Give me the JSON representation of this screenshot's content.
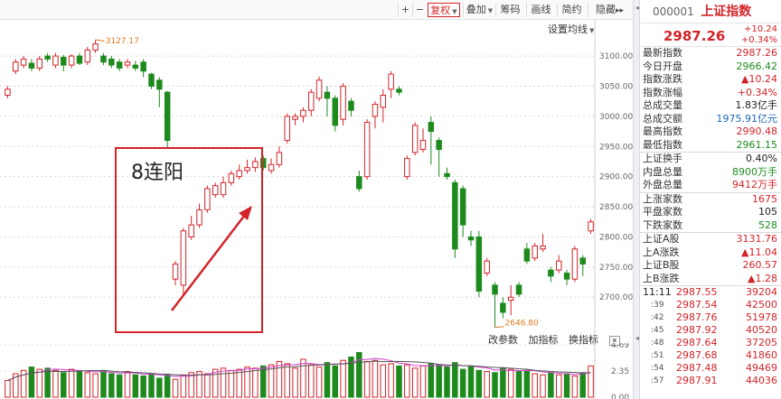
{
  "toolbar": {
    "zoom_in": "+",
    "zoom_out": "−",
    "adjust": "复权",
    "overlay": "叠加",
    "chips": "筹码",
    "draw": "画线",
    "brief": "简约",
    "hide": "隐藏",
    "expand": "▸▸"
  },
  "ma_toggle": "设置均线",
  "annotation": {
    "label": "8连阳",
    "high_marker": "3127.17",
    "low_marker": "2646.80"
  },
  "y_axis": [
    "3100.00",
    "3050.00",
    "3000.00",
    "2950.00",
    "2900.00",
    "2850.00",
    "2800.00",
    "2750.00",
    "2700.00"
  ],
  "vol_axis": [
    "4.69",
    "2.35",
    "0.00"
  ],
  "vol_header": [
    "改参数",
    "加指标",
    "换指标"
  ],
  "vol_close": "✕",
  "colors": {
    "up": "#d2242a",
    "down": "#1e8a1e",
    "box": "#d2242a"
  },
  "chart_data": {
    "type": "candlestick",
    "ylim": [
      2630,
      3160
    ],
    "candles": [
      {
        "o": 3035,
        "c": 3045,
        "h": 3050,
        "l": 3030
      },
      {
        "o": 3075,
        "c": 3090,
        "h": 3095,
        "l": 3070
      },
      {
        "o": 3085,
        "c": 3095,
        "h": 3100,
        "l": 3080
      },
      {
        "o": 3088,
        "c": 3080,
        "h": 3095,
        "l": 3075
      },
      {
        "o": 3080,
        "c": 3095,
        "h": 3100,
        "l": 3075
      },
      {
        "o": 3100,
        "c": 3095,
        "h": 3105,
        "l": 3090
      },
      {
        "o": 3085,
        "c": 3100,
        "h": 3105,
        "l": 3080
      },
      {
        "o": 3098,
        "c": 3085,
        "h": 3102,
        "l": 3075
      },
      {
        "o": 3085,
        "c": 3100,
        "h": 3103,
        "l": 3080
      },
      {
        "o": 3100,
        "c": 3088,
        "h": 3105,
        "l": 3085
      },
      {
        "o": 3090,
        "c": 3110,
        "h": 3115,
        "l": 3085
      },
      {
        "o": 3110,
        "c": 3120,
        "h": 3127,
        "l": 3105
      },
      {
        "o": 3100,
        "c": 3090,
        "h": 3105,
        "l": 3085
      },
      {
        "o": 3095,
        "c": 3085,
        "h": 3100,
        "l": 3080
      },
      {
        "o": 3090,
        "c": 3080,
        "h": 3095,
        "l": 3075
      },
      {
        "o": 3085,
        "c": 3090,
        "h": 3095,
        "l": 3080
      },
      {
        "o": 3085,
        "c": 3080,
        "h": 3092,
        "l": 3075
      },
      {
        "o": 3090,
        "c": 3075,
        "h": 3095,
        "l": 3065
      },
      {
        "o": 3070,
        "c": 3050,
        "h": 3072,
        "l": 3045
      },
      {
        "o": 3060,
        "c": 3045,
        "h": 3065,
        "l": 3015
      },
      {
        "o": 3040,
        "c": 2960,
        "h": 3042,
        "l": 2948
      },
      {
        "o": 2730,
        "c": 2755,
        "h": 2760,
        "l": 2720
      },
      {
        "o": 2720,
        "c": 2810,
        "h": 2815,
        "l": 2705
      },
      {
        "o": 2800,
        "c": 2820,
        "h": 2835,
        "l": 2795
      },
      {
        "o": 2820,
        "c": 2845,
        "h": 2855,
        "l": 2815
      },
      {
        "o": 2845,
        "c": 2880,
        "h": 2885,
        "l": 2840
      },
      {
        "o": 2870,
        "c": 2885,
        "h": 2890,
        "l": 2865
      },
      {
        "o": 2870,
        "c": 2890,
        "h": 2900,
        "l": 2865
      },
      {
        "o": 2890,
        "c": 2905,
        "h": 2910,
        "l": 2885
      },
      {
        "o": 2900,
        "c": 2910,
        "h": 2920,
        "l": 2895
      },
      {
        "o": 2910,
        "c": 2915,
        "h": 2928,
        "l": 2905
      },
      {
        "o": 2915,
        "c": 2925,
        "h": 2932,
        "l": 2908
      },
      {
        "o": 2930,
        "c": 2915,
        "h": 2935,
        "l": 2910
      },
      {
        "o": 2910,
        "c": 2920,
        "h": 2930,
        "l": 2905
      },
      {
        "o": 2920,
        "c": 2940,
        "h": 2950,
        "l": 2915
      },
      {
        "o": 2960,
        "c": 3000,
        "h": 3005,
        "l": 2955
      },
      {
        "o": 2995,
        "c": 3000,
        "h": 3005,
        "l": 2985
      },
      {
        "o": 3000,
        "c": 3010,
        "h": 3015,
        "l": 2990
      },
      {
        "o": 3010,
        "c": 3040,
        "h": 3045,
        "l": 3000
      },
      {
        "o": 3030,
        "c": 3060,
        "h": 3066,
        "l": 3025
      },
      {
        "o": 3040,
        "c": 3030,
        "h": 3050,
        "l": 3000
      },
      {
        "o": 3030,
        "c": 2985,
        "h": 3035,
        "l": 2975
      },
      {
        "o": 2995,
        "c": 3050,
        "h": 3055,
        "l": 2985
      },
      {
        "o": 3025,
        "c": 3010,
        "h": 3030,
        "l": 3000
      },
      {
        "o": 2900,
        "c": 2880,
        "h": 2910,
        "l": 2875
      },
      {
        "o": 2900,
        "c": 2990,
        "h": 2995,
        "l": 2895
      },
      {
        "o": 3000,
        "c": 3020,
        "h": 3025,
        "l": 2980
      },
      {
        "o": 3015,
        "c": 3035,
        "h": 3045,
        "l": 2990
      },
      {
        "o": 3045,
        "c": 3070,
        "h": 3075,
        "l": 3030
      },
      {
        "o": 3045,
        "c": 3040,
        "h": 3050,
        "l": 3035
      },
      {
        "o": 2900,
        "c": 2930,
        "h": 2935,
        "l": 2895
      },
      {
        "o": 2940,
        "c": 2985,
        "h": 2990,
        "l": 2935
      },
      {
        "o": 2945,
        "c": 2960,
        "h": 2980,
        "l": 2940
      },
      {
        "o": 2990,
        "c": 2975,
        "h": 3000,
        "l": 2920
      },
      {
        "o": 2960,
        "c": 2945,
        "h": 2965,
        "l": 2900
      },
      {
        "o": 2905,
        "c": 2900,
        "h": 2915,
        "l": 2895
      },
      {
        "o": 2890,
        "c": 2780,
        "h": 2895,
        "l": 2765
      },
      {
        "o": 2880,
        "c": 2820,
        "h": 2885,
        "l": 2800
      },
      {
        "o": 2800,
        "c": 2795,
        "h": 2810,
        "l": 2785
      },
      {
        "o": 2800,
        "c": 2710,
        "h": 2810,
        "l": 2700
      },
      {
        "o": 2740,
        "c": 2760,
        "h": 2765,
        "l": 2735
      },
      {
        "o": 2720,
        "c": 2705,
        "h": 2725,
        "l": 2650
      },
      {
        "o": 2690,
        "c": 2675,
        "h": 2700,
        "l": 2665
      },
      {
        "o": 2695,
        "c": 2700,
        "h": 2720,
        "l": 2670
      },
      {
        "o": 2720,
        "c": 2705,
        "h": 2725,
        "l": 2700
      },
      {
        "o": 2780,
        "c": 2760,
        "h": 2790,
        "l": 2755
      },
      {
        "o": 2765,
        "c": 2785,
        "h": 2790,
        "l": 2760
      },
      {
        "o": 2780,
        "c": 2785,
        "h": 2805,
        "l": 2775
      },
      {
        "o": 2745,
        "c": 2735,
        "h": 2750,
        "l": 2725
      },
      {
        "o": 2745,
        "c": 2760,
        "h": 2770,
        "l": 2740
      },
      {
        "o": 2740,
        "c": 2730,
        "h": 2745,
        "l": 2720
      },
      {
        "o": 2730,
        "c": 2780,
        "h": 2785,
        "l": 2725
      },
      {
        "o": 2765,
        "c": 2755,
        "h": 2770,
        "l": 2735
      },
      {
        "o": 2810,
        "c": 2825,
        "h": 2830,
        "l": 2805
      }
    ],
    "volumes": [
      1.5,
      2.1,
      2.4,
      2.7,
      2.5,
      2.6,
      2.4,
      2.2,
      2.5,
      2.3,
      2.2,
      2.1,
      2.4,
      2.1,
      2.0,
      2.3,
      2.0,
      1.9,
      2.1,
      1.7,
      2.0,
      1.6,
      2.0,
      2.2,
      2.3,
      2.1,
      2.5,
      2.6,
      2.4,
      2.5,
      2.7,
      2.6,
      2.8,
      2.9,
      3.2,
      3.0,
      2.6,
      3.4,
      2.9,
      2.7,
      3.1,
      2.8,
      3.3,
      3.6,
      4.0,
      3.2,
      3.3,
      2.9,
      3.0,
      2.8,
      2.9,
      2.6,
      2.8,
      3.0,
      2.9,
      2.7,
      3.1,
      2.5,
      2.8,
      2.4,
      2.3,
      2.2,
      2.6,
      2.5,
      2.3,
      2.4,
      2.1,
      2.0,
      2.2,
      2.0,
      2.1,
      1.9,
      2.2,
      2.8
    ]
  },
  "panel": {
    "code": "000001",
    "name": "上证指数",
    "price": "2987.26",
    "change": "+10.24",
    "change_pct": "+0.34%",
    "stats": [
      {
        "label": "最新指数",
        "value": "2987.26",
        "color": "red"
      },
      {
        "label": "今日开盘",
        "value": "2966.42",
        "color": "green"
      },
      {
        "label": "指数涨跌",
        "value": "▲10.24",
        "color": "red"
      },
      {
        "label": "指数涨幅",
        "value": "+0.34%",
        "color": "red"
      },
      {
        "label": "总成交量",
        "value": "1.83亿手",
        "color": "dark"
      },
      {
        "label": "总成交额",
        "value": "1975.91亿元",
        "color": "blue"
      },
      {
        "label": "最高指数",
        "value": "2990.48",
        "color": "red"
      },
      {
        "label": "最低指数",
        "value": "2961.15",
        "color": "green"
      }
    ],
    "stats2": [
      {
        "label": "上证换手",
        "value": "0.40%",
        "color": "dark"
      },
      {
        "label": "内盘总量",
        "value": "8900万手",
        "color": "green"
      },
      {
        "label": "外盘总量",
        "value": "9412万手",
        "color": "red"
      }
    ],
    "stats3": [
      {
        "label": "上涨家数",
        "value": "1675",
        "color": "red"
      },
      {
        "label": "平盘家数",
        "value": "105",
        "color": "dark"
      },
      {
        "label": "下跌家数",
        "value": "528",
        "color": "green"
      }
    ],
    "stats4": [
      {
        "label": "上证A股",
        "value": "3131.76",
        "color": "red"
      },
      {
        "label": "上A涨跌",
        "value": "▲11.04",
        "color": "red"
      },
      {
        "label": "上证B股",
        "value": "260.57",
        "color": "red"
      },
      {
        "label": "上B涨跌",
        "value": "▲1.28",
        "color": "red"
      }
    ],
    "ticks": [
      {
        "time": "11:11",
        "price": "2987.55",
        "vol": "39204"
      },
      {
        "time": ":39",
        "price": "2987.54",
        "vol": "42500"
      },
      {
        "time": ":42",
        "price": "2987.76",
        "vol": "51978"
      },
      {
        "time": ":45",
        "price": "2987.92",
        "vol": "40520"
      },
      {
        "time": ":48",
        "price": "2987.64",
        "vol": "37205"
      },
      {
        "time": ":51",
        "price": "2987.68",
        "vol": "41860"
      },
      {
        "time": ":54",
        "price": "2987.48",
        "vol": "49469"
      },
      {
        "time": ":57",
        "price": "2987.91",
        "vol": "44036"
      }
    ]
  }
}
